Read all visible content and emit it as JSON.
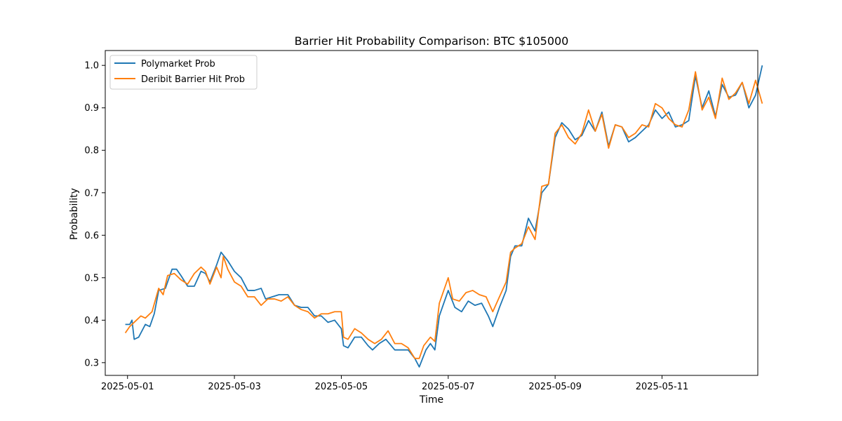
{
  "chart_data": {
    "type": "line",
    "title": "Barrier Hit Probability Comparison: BTC $105000",
    "xlabel": "Time",
    "ylabel": "Probability",
    "xlim": [
      "2025-04-30T14:00",
      "2025-05-12T19:00"
    ],
    "ylim": [
      0.27,
      1.035
    ],
    "x_ticks": [
      "2025-05-01",
      "2025-05-03",
      "2025-05-05",
      "2025-05-07",
      "2025-05-09",
      "2025-05-11"
    ],
    "y_ticks": [
      0.3,
      0.4,
      0.5,
      0.6,
      0.7,
      0.8,
      0.9,
      1.0
    ],
    "y_tick_labels": [
      "0.3",
      "0.4",
      "0.5",
      "0.6",
      "0.7",
      "0.8",
      "0.9",
      "1.0"
    ],
    "grid": false,
    "legend_position": "upper-left",
    "series": [
      {
        "name": "Polymarket Prob",
        "color": "#1f77b4",
        "points": [
          [
            "2025-04-30T23:00",
            0.39
          ],
          [
            "2025-05-01T01:00",
            0.39
          ],
          [
            "2025-05-01T02:00",
            0.4
          ],
          [
            "2025-05-01T03:00",
            0.355
          ],
          [
            "2025-05-01T05:00",
            0.36
          ],
          [
            "2025-05-01T08:00",
            0.39
          ],
          [
            "2025-05-01T10:00",
            0.385
          ],
          [
            "2025-05-01T12:00",
            0.415
          ],
          [
            "2025-05-01T14:00",
            0.47
          ],
          [
            "2025-05-01T17:00",
            0.475
          ],
          [
            "2025-05-01T20:00",
            0.52
          ],
          [
            "2025-05-01T22:00",
            0.52
          ],
          [
            "2025-05-02T00:00",
            0.505
          ],
          [
            "2025-05-02T03:00",
            0.48
          ],
          [
            "2025-05-02T06:00",
            0.48
          ],
          [
            "2025-05-02T09:00",
            0.515
          ],
          [
            "2025-05-02T11:00",
            0.51
          ],
          [
            "2025-05-02T13:00",
            0.49
          ],
          [
            "2025-05-02T16:00",
            0.53
          ],
          [
            "2025-05-02T18:00",
            0.56
          ],
          [
            "2025-05-02T21:00",
            0.54
          ],
          [
            "2025-05-03T00:00",
            0.515
          ],
          [
            "2025-05-03T03:00",
            0.5
          ],
          [
            "2025-05-03T06:00",
            0.47
          ],
          [
            "2025-05-03T09:00",
            0.47
          ],
          [
            "2025-05-03T12:00",
            0.475
          ],
          [
            "2025-05-03T14:00",
            0.45
          ],
          [
            "2025-05-03T17:00",
            0.455
          ],
          [
            "2025-05-03T20:00",
            0.46
          ],
          [
            "2025-05-04T00:00",
            0.46
          ],
          [
            "2025-05-04T03:00",
            0.435
          ],
          [
            "2025-05-04T06:00",
            0.43
          ],
          [
            "2025-05-04T09:00",
            0.43
          ],
          [
            "2025-05-04T12:00",
            0.41
          ],
          [
            "2025-05-04T15:00",
            0.41
          ],
          [
            "2025-05-04T18:00",
            0.395
          ],
          [
            "2025-05-04T21:00",
            0.4
          ],
          [
            "2025-05-05T00:00",
            0.38
          ],
          [
            "2025-05-05T01:00",
            0.34
          ],
          [
            "2025-05-05T03:00",
            0.335
          ],
          [
            "2025-05-05T06:00",
            0.36
          ],
          [
            "2025-05-05T09:00",
            0.36
          ],
          [
            "2025-05-05T12:00",
            0.34
          ],
          [
            "2025-05-05T14:00",
            0.33
          ],
          [
            "2025-05-05T17:00",
            0.345
          ],
          [
            "2025-05-05T20:00",
            0.355
          ],
          [
            "2025-05-06T00:00",
            0.33
          ],
          [
            "2025-05-06T03:00",
            0.33
          ],
          [
            "2025-05-06T06:00",
            0.33
          ],
          [
            "2025-05-06T09:00",
            0.31
          ],
          [
            "2025-05-06T11:00",
            0.29
          ],
          [
            "2025-05-06T14:00",
            0.33
          ],
          [
            "2025-05-06T16:00",
            0.345
          ],
          [
            "2025-05-06T18:00",
            0.33
          ],
          [
            "2025-05-06T20:00",
            0.41
          ],
          [
            "2025-05-07T00:00",
            0.47
          ],
          [
            "2025-05-07T03:00",
            0.43
          ],
          [
            "2025-05-07T06:00",
            0.42
          ],
          [
            "2025-05-07T09:00",
            0.445
          ],
          [
            "2025-05-07T12:00",
            0.435
          ],
          [
            "2025-05-07T15:00",
            0.44
          ],
          [
            "2025-05-07T18:00",
            0.41
          ],
          [
            "2025-05-07T20:00",
            0.385
          ],
          [
            "2025-05-07T23:00",
            0.43
          ],
          [
            "2025-05-08T02:00",
            0.47
          ],
          [
            "2025-05-08T04:00",
            0.55
          ],
          [
            "2025-05-08T06:00",
            0.575
          ],
          [
            "2025-05-08T09:00",
            0.575
          ],
          [
            "2025-05-08T12:00",
            0.64
          ],
          [
            "2025-05-08T15:00",
            0.61
          ],
          [
            "2025-05-08T18:00",
            0.7
          ],
          [
            "2025-05-08T21:00",
            0.72
          ],
          [
            "2025-05-09T00:00",
            0.83
          ],
          [
            "2025-05-09T03:00",
            0.865
          ],
          [
            "2025-05-09T06:00",
            0.85
          ],
          [
            "2025-05-09T09:00",
            0.825
          ],
          [
            "2025-05-09T12:00",
            0.835
          ],
          [
            "2025-05-09T15:00",
            0.87
          ],
          [
            "2025-05-09T18:00",
            0.845
          ],
          [
            "2025-05-09T21:00",
            0.89
          ],
          [
            "2025-05-10T00:00",
            0.81
          ],
          [
            "2025-05-10T03:00",
            0.86
          ],
          [
            "2025-05-10T06:00",
            0.855
          ],
          [
            "2025-05-10T09:00",
            0.82
          ],
          [
            "2025-05-10T12:00",
            0.83
          ],
          [
            "2025-05-10T15:00",
            0.845
          ],
          [
            "2025-05-10T18:00",
            0.86
          ],
          [
            "2025-05-10T21:00",
            0.895
          ],
          [
            "2025-05-11T00:00",
            0.875
          ],
          [
            "2025-05-11T03:00",
            0.89
          ],
          [
            "2025-05-11T06:00",
            0.855
          ],
          [
            "2025-05-11T09:00",
            0.86
          ],
          [
            "2025-05-11T12:00",
            0.87
          ],
          [
            "2025-05-11T15:00",
            0.975
          ],
          [
            "2025-05-11T18:00",
            0.9
          ],
          [
            "2025-05-11T21:00",
            0.94
          ],
          [
            "2025-05-12T00:00",
            0.88
          ],
          [
            "2025-05-12T03:00",
            0.955
          ],
          [
            "2025-05-12T06:00",
            0.925
          ],
          [
            "2025-05-12T09:00",
            0.93
          ],
          [
            "2025-05-12T12:00",
            0.96
          ],
          [
            "2025-05-12T15:00",
            0.9
          ],
          [
            "2025-05-12T18:00",
            0.93
          ],
          [
            "2025-05-12T21:00",
            1.0
          ]
        ]
      },
      {
        "name": "Deribit Barrier Hit Prob",
        "color": "#ff7f0e",
        "points": [
          [
            "2025-04-30T23:00",
            0.37
          ],
          [
            "2025-05-01T01:00",
            0.385
          ],
          [
            "2025-05-01T04:00",
            0.4
          ],
          [
            "2025-05-01T06:00",
            0.41
          ],
          [
            "2025-05-01T08:00",
            0.405
          ],
          [
            "2025-05-01T11:00",
            0.42
          ],
          [
            "2025-05-01T14:00",
            0.475
          ],
          [
            "2025-05-01T16:00",
            0.46
          ],
          [
            "2025-05-01T18:00",
            0.505
          ],
          [
            "2025-05-01T21:00",
            0.51
          ],
          [
            "2025-05-02T00:00",
            0.495
          ],
          [
            "2025-05-02T03:00",
            0.485
          ],
          [
            "2025-05-02T06:00",
            0.51
          ],
          [
            "2025-05-02T09:00",
            0.525
          ],
          [
            "2025-05-02T11:00",
            0.515
          ],
          [
            "2025-05-02T13:00",
            0.485
          ],
          [
            "2025-05-02T16:00",
            0.525
          ],
          [
            "2025-05-02T18:00",
            0.5
          ],
          [
            "2025-05-02T19:00",
            0.55
          ],
          [
            "2025-05-02T21:00",
            0.52
          ],
          [
            "2025-05-03T00:00",
            0.49
          ],
          [
            "2025-05-03T03:00",
            0.48
          ],
          [
            "2025-05-03T06:00",
            0.455
          ],
          [
            "2025-05-03T09:00",
            0.455
          ],
          [
            "2025-05-03T12:00",
            0.435
          ],
          [
            "2025-05-03T15:00",
            0.45
          ],
          [
            "2025-05-03T18:00",
            0.45
          ],
          [
            "2025-05-03T21:00",
            0.445
          ],
          [
            "2025-05-04T00:00",
            0.455
          ],
          [
            "2025-05-04T03:00",
            0.435
          ],
          [
            "2025-05-04T06:00",
            0.425
          ],
          [
            "2025-05-04T09:00",
            0.42
          ],
          [
            "2025-05-04T12:00",
            0.405
          ],
          [
            "2025-05-04T15:00",
            0.415
          ],
          [
            "2025-05-04T18:00",
            0.415
          ],
          [
            "2025-05-04T21:00",
            0.42
          ],
          [
            "2025-05-05T00:00",
            0.42
          ],
          [
            "2025-05-05T01:00",
            0.36
          ],
          [
            "2025-05-05T03:00",
            0.355
          ],
          [
            "2025-05-05T06:00",
            0.38
          ],
          [
            "2025-05-05T09:00",
            0.37
          ],
          [
            "2025-05-05T12:00",
            0.355
          ],
          [
            "2025-05-05T15:00",
            0.345
          ],
          [
            "2025-05-05T18:00",
            0.355
          ],
          [
            "2025-05-05T21:00",
            0.375
          ],
          [
            "2025-05-06T00:00",
            0.345
          ],
          [
            "2025-05-06T03:00",
            0.345
          ],
          [
            "2025-05-06T06:00",
            0.335
          ],
          [
            "2025-05-06T09:00",
            0.31
          ],
          [
            "2025-05-06T11:00",
            0.31
          ],
          [
            "2025-05-06T13:00",
            0.34
          ],
          [
            "2025-05-06T16:00",
            0.36
          ],
          [
            "2025-05-06T18:00",
            0.35
          ],
          [
            "2025-05-06T20:00",
            0.44
          ],
          [
            "2025-05-07T00:00",
            0.5
          ],
          [
            "2025-05-07T02:00",
            0.45
          ],
          [
            "2025-05-07T05:00",
            0.445
          ],
          [
            "2025-05-07T08:00",
            0.465
          ],
          [
            "2025-05-07T11:00",
            0.47
          ],
          [
            "2025-05-07T14:00",
            0.46
          ],
          [
            "2025-05-07T17:00",
            0.455
          ],
          [
            "2025-05-07T20:00",
            0.42
          ],
          [
            "2025-05-07T23:00",
            0.455
          ],
          [
            "2025-05-08T02:00",
            0.49
          ],
          [
            "2025-05-08T04:00",
            0.56
          ],
          [
            "2025-05-08T06:00",
            0.57
          ],
          [
            "2025-05-08T09:00",
            0.58
          ],
          [
            "2025-05-08T12:00",
            0.62
          ],
          [
            "2025-05-08T15:00",
            0.59
          ],
          [
            "2025-05-08T18:00",
            0.715
          ],
          [
            "2025-05-08T21:00",
            0.72
          ],
          [
            "2025-05-09T00:00",
            0.84
          ],
          [
            "2025-05-09T03:00",
            0.86
          ],
          [
            "2025-05-09T06:00",
            0.83
          ],
          [
            "2025-05-09T09:00",
            0.815
          ],
          [
            "2025-05-09T12:00",
            0.84
          ],
          [
            "2025-05-09T15:00",
            0.895
          ],
          [
            "2025-05-09T18:00",
            0.845
          ],
          [
            "2025-05-09T21:00",
            0.885
          ],
          [
            "2025-05-10T00:00",
            0.805
          ],
          [
            "2025-05-10T03:00",
            0.86
          ],
          [
            "2025-05-10T06:00",
            0.855
          ],
          [
            "2025-05-10T09:00",
            0.83
          ],
          [
            "2025-05-10T12:00",
            0.84
          ],
          [
            "2025-05-10T15:00",
            0.86
          ],
          [
            "2025-05-10T18:00",
            0.855
          ],
          [
            "2025-05-10T21:00",
            0.91
          ],
          [
            "2025-05-11T00:00",
            0.9
          ],
          [
            "2025-05-11T03:00",
            0.875
          ],
          [
            "2025-05-11T06:00",
            0.86
          ],
          [
            "2025-05-11T09:00",
            0.855
          ],
          [
            "2025-05-11T12:00",
            0.895
          ],
          [
            "2025-05-11T15:00",
            0.985
          ],
          [
            "2025-05-11T18:00",
            0.895
          ],
          [
            "2025-05-11T21:00",
            0.925
          ],
          [
            "2025-05-12T00:00",
            0.875
          ],
          [
            "2025-05-12T03:00",
            0.97
          ],
          [
            "2025-05-12T06:00",
            0.92
          ],
          [
            "2025-05-12T09:00",
            0.935
          ],
          [
            "2025-05-12T12:00",
            0.96
          ],
          [
            "2025-05-12T15:00",
            0.91
          ],
          [
            "2025-05-12T18:00",
            0.965
          ],
          [
            "2025-05-12T21:00",
            0.91
          ]
        ]
      }
    ]
  }
}
